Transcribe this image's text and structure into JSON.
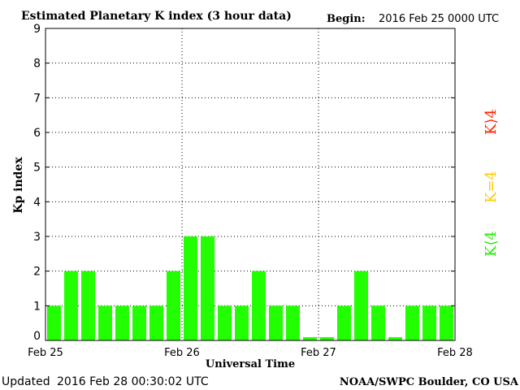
{
  "chart_data": {
    "type": "bar",
    "title": "Estimated Planetary K index (3 hour data)",
    "begin_label": "Begin:",
    "begin_value": "2016 Feb 25 0000 UTC",
    "ylabel": "Kp index",
    "xlabel": "Universal Time",
    "ylim": [
      0,
      9
    ],
    "yticks": [
      "0",
      "1",
      "2",
      "3",
      "4",
      "5",
      "6",
      "7",
      "8",
      "9"
    ],
    "xticks": [
      "Feb 25",
      "Feb 26",
      "Feb 27",
      "Feb 28"
    ],
    "grid": true,
    "values": [
      1,
      2,
      2,
      1,
      1,
      1,
      1,
      2,
      3,
      3,
      1,
      1,
      2,
      1,
      1,
      0,
      0,
      1,
      2,
      1,
      0,
      1,
      1,
      1
    ],
    "legend": [
      {
        "label": "K<4",
        "display": "K⟨4",
        "color": "#22ee00"
      },
      {
        "label": "K=4",
        "display": "K=4",
        "color": "#ffcc00"
      },
      {
        "label": "K>4",
        "display": "K⟩4",
        "color": "#ff2200"
      }
    ],
    "bar_color": "#22ff00",
    "updated_label": "Updated",
    "updated_value": "2016 Feb 28 00:30:02 UTC",
    "source": "NOAA/SWPC Boulder, CO USA"
  }
}
